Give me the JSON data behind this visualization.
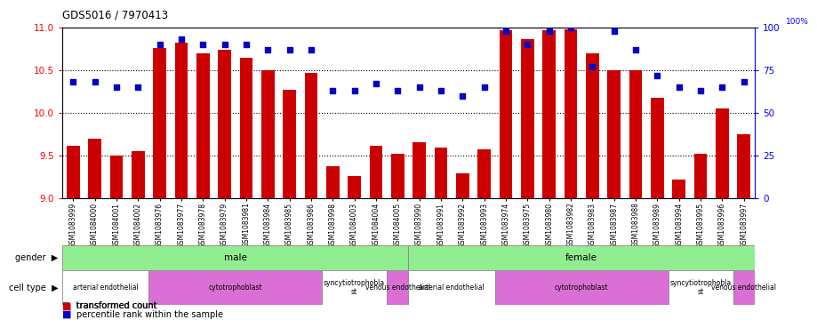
{
  "title": "GDS5016 / 7970413",
  "samples": [
    "GSM1083999",
    "GSM1084000",
    "GSM1084001",
    "GSM1084002",
    "GSM1083976",
    "GSM1083977",
    "GSM1083978",
    "GSM1083979",
    "GSM1083981",
    "GSM1083984",
    "GSM1083985",
    "GSM1083986",
    "GSM1083998",
    "GSM1084003",
    "GSM1084004",
    "GSM1084005",
    "GSM1083990",
    "GSM1083991",
    "GSM1083992",
    "GSM1083993",
    "GSM1083974",
    "GSM1083975",
    "GSM1083980",
    "GSM1083982",
    "GSM1083983",
    "GSM1083987",
    "GSM1083988",
    "GSM1083989",
    "GSM1083994",
    "GSM1083995",
    "GSM1083996",
    "GSM1083997"
  ],
  "bar_values": [
    9.62,
    9.7,
    9.5,
    9.55,
    10.76,
    10.82,
    10.7,
    10.74,
    10.65,
    10.5,
    10.27,
    10.47,
    9.38,
    9.26,
    9.62,
    9.52,
    9.66,
    9.6,
    9.3,
    9.58,
    10.97,
    10.86,
    10.97,
    10.98,
    10.7,
    10.5,
    10.5,
    10.18,
    9.22,
    9.52,
    10.05,
    9.75
  ],
  "percentile_values": [
    68,
    68,
    65,
    65,
    90,
    93,
    90,
    90,
    90,
    87,
    87,
    87,
    63,
    63,
    67,
    63,
    65,
    63,
    60,
    65,
    98,
    90,
    98,
    100,
    77,
    98,
    87,
    72,
    65,
    63,
    65,
    68
  ],
  "bar_color": "#cc0000",
  "dot_color": "#0000cc",
  "background_color": "#ffffff",
  "ylim_left": [
    9.0,
    11.0
  ],
  "ylim_right": [
    0,
    100
  ],
  "yticks_left": [
    9.0,
    9.5,
    10.0,
    10.5,
    11.0
  ],
  "yticks_right": [
    0,
    25,
    50,
    75,
    100
  ],
  "gender_groups": [
    {
      "label": "male",
      "start": 0,
      "end": 15,
      "color": "#90ee90"
    },
    {
      "label": "female",
      "start": 16,
      "end": 31,
      "color": "#90ee90"
    }
  ],
  "cell_type_groups": [
    {
      "label": "arterial endothelial",
      "start": 0,
      "end": 3,
      "color": "#ffffff"
    },
    {
      "label": "cytotrophoblast",
      "start": 4,
      "end": 11,
      "color": "#da70d6"
    },
    {
      "label": "syncytiotrophobla\nst",
      "start": 12,
      "end": 14,
      "color": "#ffffff"
    },
    {
      "label": "venous endothelial",
      "start": 15,
      "end": 15,
      "color": "#da70d6"
    },
    {
      "label": "arterial endothelial",
      "start": 16,
      "end": 19,
      "color": "#ffffff"
    },
    {
      "label": "cytotrophoblast",
      "start": 20,
      "end": 27,
      "color": "#da70d6"
    },
    {
      "label": "syncytiotrophobla\nst",
      "start": 28,
      "end": 30,
      "color": "#ffffff"
    },
    {
      "label": "venous endothelial",
      "start": 31,
      "end": 31,
      "color": "#da70d6"
    }
  ],
  "legend_items": [
    {
      "label": "transformed count",
      "color": "#cc0000"
    },
    {
      "label": "percentile rank within the sample",
      "color": "#0000cc"
    }
  ]
}
